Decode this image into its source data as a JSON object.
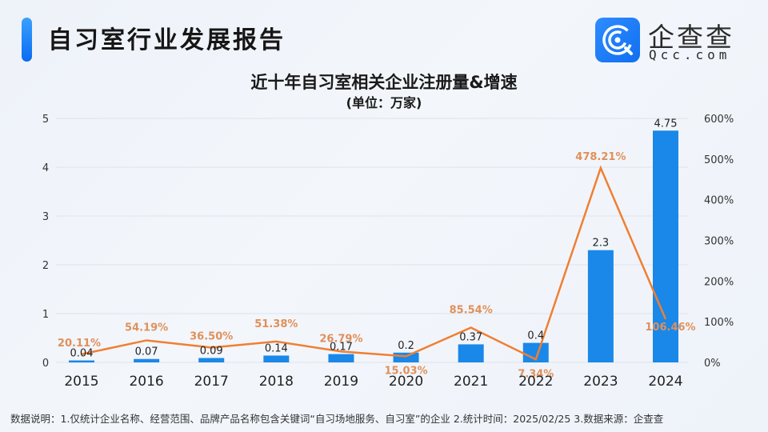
{
  "header": {
    "report_title": "自习室行业发展报告",
    "brand_name": "企查查",
    "brand_url": "Qcc.com",
    "brand_icon": "magnifier-q-logo-icon"
  },
  "colors": {
    "bar": "#1a88e8",
    "line": "#f07f32",
    "pct_label": "#e0905a",
    "accent": "#1377f5",
    "grid": "#dde3ec"
  },
  "chart_data": {
    "type": "bar",
    "title": "近十年自习室相关企业注册量&增速",
    "subtitle": "(单位：万家)",
    "categories": [
      "2015",
      "2016",
      "2017",
      "2018",
      "2019",
      "2020",
      "2021",
      "2022",
      "2023",
      "2024"
    ],
    "series": [
      {
        "name": "注册量(万家)",
        "type": "bar",
        "axis": "left",
        "values": [
          0.04,
          0.07,
          0.09,
          0.14,
          0.17,
          0.2,
          0.37,
          0.4,
          2.3,
          4.75
        ],
        "labels": [
          "0.04",
          "0.07",
          "0.09",
          "0.14",
          "0.17",
          "0.2",
          "0.37",
          "0.4",
          "2.3",
          "4.75"
        ]
      },
      {
        "name": "增速",
        "type": "line",
        "axis": "right",
        "values": [
          20.11,
          54.19,
          36.5,
          51.38,
          26.79,
          15.03,
          85.54,
          7.34,
          478.21,
          106.46
        ],
        "labels": [
          "20.11%",
          "54.19%",
          "36.50%",
          "51.38%",
          "26.79%",
          "15.03%",
          "85.54%",
          "7.34%",
          "478.21%",
          "106.46%"
        ]
      }
    ],
    "y_left": {
      "ylim": [
        0,
        5
      ],
      "ticks": [
        "0",
        "1",
        "2",
        "3",
        "4",
        "5"
      ]
    },
    "y_right": {
      "ylim": [
        0,
        600
      ],
      "ticks": [
        "0%",
        "100%",
        "200%",
        "300%",
        "400%",
        "500%",
        "600%"
      ]
    },
    "xlabel": "",
    "ylabel": "",
    "grid": true,
    "legend": "none"
  },
  "footer": {
    "note": "数据说明：1.仅统计企业名称、经营范围、品牌产品名称包含关键词“自习场地服务、自习室”的企业   2.统计时间：2025/02/25    3.数据来源：企查查"
  }
}
